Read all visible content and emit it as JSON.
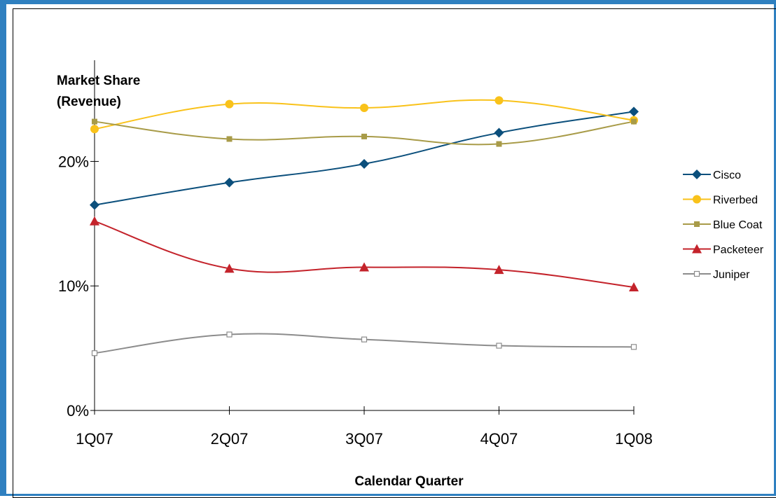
{
  "chart_data": {
    "type": "line",
    "title": "",
    "ylabel_lines": [
      "Market Share",
      "(Revenue)"
    ],
    "xlabel": "Calendar Quarter",
    "categories": [
      "1Q07",
      "2Q07",
      "3Q07",
      "4Q07",
      "1Q08"
    ],
    "yticks": [
      0,
      10,
      20
    ],
    "ytick_labels": [
      "0%",
      "10%",
      "20%"
    ],
    "ylim": [
      0,
      27
    ],
    "grid": false,
    "legend_position": "right",
    "series": [
      {
        "name": "Cisco",
        "values": [
          16.5,
          18.3,
          19.8,
          22.3,
          24.0
        ],
        "color": "#0b4f7c",
        "marker": "diamond"
      },
      {
        "name": "Riverbed",
        "values": [
          22.6,
          24.6,
          24.3,
          24.9,
          23.3
        ],
        "color": "#f9c21a",
        "marker": "circle"
      },
      {
        "name": "Blue Coat",
        "values": [
          23.2,
          21.8,
          22.0,
          21.4,
          23.2
        ],
        "color": "#a89b48",
        "marker": "square"
      },
      {
        "name": "Packeteer",
        "values": [
          15.2,
          11.4,
          11.5,
          11.3,
          9.9
        ],
        "color": "#c4232b",
        "marker": "triangle"
      },
      {
        "name": "Juniper",
        "values": [
          4.6,
          6.1,
          5.7,
          5.2,
          5.1
        ],
        "color": "#8c8c8c",
        "marker": "open-square"
      }
    ]
  }
}
